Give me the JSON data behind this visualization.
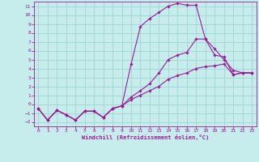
{
  "xlabel": "Windchill (Refroidissement éolien,°C)",
  "bg_color": "#c6eceb",
  "grid_color": "#9fd4d2",
  "line_color": "#9b1b9b",
  "xlim": [
    -0.5,
    23.5
  ],
  "ylim": [
    -2.5,
    11.5
  ],
  "xticks": [
    0,
    1,
    2,
    3,
    4,
    5,
    6,
    7,
    8,
    9,
    10,
    11,
    12,
    13,
    14,
    15,
    16,
    17,
    18,
    19,
    20,
    21,
    22,
    23
  ],
  "yticks": [
    -2,
    -1,
    0,
    1,
    2,
    3,
    4,
    5,
    6,
    7,
    8,
    9,
    10,
    11
  ],
  "series": [
    {
      "x": [
        0,
        1,
        2,
        3,
        4,
        5,
        6,
        7,
        8,
        9,
        10,
        11,
        12,
        13,
        14,
        15,
        16,
        17,
        18,
        19,
        20,
        21,
        22,
        23
      ],
      "y": [
        -0.5,
        -1.8,
        -0.7,
        -1.2,
        -1.8,
        -0.8,
        -0.8,
        -1.5,
        -0.5,
        -0.2,
        4.5,
        8.7,
        9.6,
        10.3,
        11.0,
        11.3,
        11.1,
        11.1,
        7.3,
        5.5,
        5.3,
        3.3,
        3.5,
        3.5
      ]
    },
    {
      "x": [
        0,
        1,
        2,
        3,
        4,
        5,
        6,
        7,
        8,
        9,
        10,
        11,
        12,
        13,
        14,
        15,
        16,
        17,
        18,
        19,
        20,
        21,
        22,
        23
      ],
      "y": [
        -0.5,
        -1.8,
        -0.7,
        -1.2,
        -1.8,
        -0.8,
        -0.8,
        -1.5,
        -0.5,
        -0.2,
        0.8,
        1.5,
        2.3,
        3.5,
        5.0,
        5.5,
        5.8,
        7.3,
        7.3,
        6.2,
        5.0,
        3.8,
        3.5,
        3.5
      ]
    },
    {
      "x": [
        0,
        1,
        2,
        3,
        4,
        5,
        6,
        7,
        8,
        9,
        10,
        11,
        12,
        13,
        14,
        15,
        16,
        17,
        18,
        19,
        20,
        21,
        22,
        23
      ],
      "y": [
        -0.5,
        -1.8,
        -0.7,
        -1.2,
        -1.8,
        -0.8,
        -0.8,
        -1.5,
        -0.5,
        -0.2,
        0.5,
        1.0,
        1.5,
        2.0,
        2.8,
        3.2,
        3.5,
        4.0,
        4.2,
        4.3,
        4.5,
        3.3,
        3.5,
        3.5
      ]
    }
  ]
}
